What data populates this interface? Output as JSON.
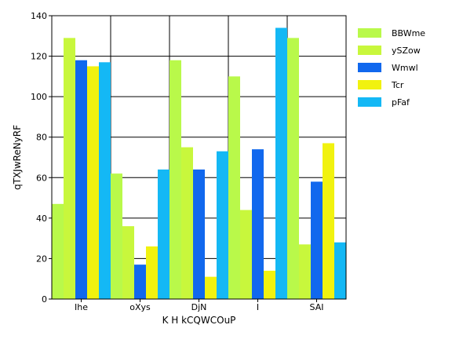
{
  "chart_data": {
    "type": "bar",
    "title": "",
    "xlabel": "K H kCQWCOuP",
    "ylabel": "qTXJwReNyRF",
    "categories": [
      "Ihe",
      "oXys",
      "DjN",
      "I",
      "SAI"
    ],
    "series": [
      {
        "name": "BBWme",
        "color": "#b9f94a",
        "values": [
          47,
          62,
          118,
          110,
          129
        ]
      },
      {
        "name": "ySZow",
        "color": "#c8f73c",
        "values": [
          129,
          36,
          75,
          44,
          27
        ]
      },
      {
        "name": "Wmwl",
        "color": "#1168ee",
        "values": [
          118,
          17,
          64,
          74,
          58
        ]
      },
      {
        "name": "Tcr",
        "color": "#f1f20f",
        "values": [
          115,
          26,
          11,
          14,
          77
        ]
      },
      {
        "name": "pFaf",
        "color": "#14b8f5",
        "values": [
          117,
          64,
          73,
          134,
          28
        ]
      }
    ],
    "ylim": [
      0,
      140
    ],
    "yticks": [
      0,
      20,
      40,
      60,
      80,
      100,
      120,
      140
    ],
    "grid": true,
    "legend": "right"
  }
}
